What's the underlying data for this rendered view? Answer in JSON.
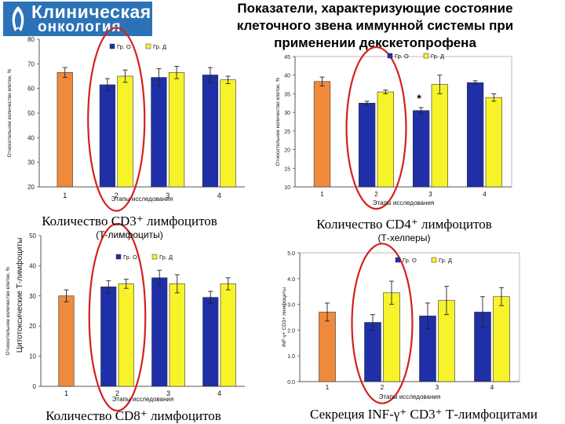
{
  "header": {
    "logo_line1": "Клиническая",
    "logo_line2": "онкология",
    "title_lines": [
      "Показатели, характеризующие состояние",
      "клеточного звена иммунной системы при",
      "применении декскетопрофена"
    ]
  },
  "colors": {
    "control": "#f08a3c",
    "gr_o": "#1f2fa8",
    "gr_d": "#f7f32a",
    "ellipse": "#d42020"
  },
  "chart_data": [
    {
      "type": "bar",
      "caption": "Количество CD3⁺ лимфоцитов",
      "subcaption": "(Т-лимфоциты)",
      "ylabel": "Относительное количество клеток, %",
      "xlabel": "Этапы исследования",
      "ylim": [
        20,
        80
      ],
      "yticks": [
        "20",
        "30",
        "40",
        "50",
        "60",
        "70",
        "80"
      ],
      "categories": [
        "1",
        "2",
        "3",
        "4"
      ],
      "legend": [
        "Гр. О",
        "Гр. Д"
      ],
      "series": [
        {
          "name": "control",
          "values": [
            66.5,
            null,
            null,
            null
          ]
        },
        {
          "name": "Гр. О",
          "values": [
            null,
            61.5,
            64.5,
            65.5
          ]
        },
        {
          "name": "Гр. Д",
          "values": [
            null,
            65,
            66.5,
            63.5
          ]
        }
      ],
      "errors": [
        [
          2,
          null,
          null,
          null
        ],
        [
          null,
          2.5,
          3.5,
          3
        ],
        [
          null,
          2.5,
          2.5,
          1.5
        ],
        [
          null,
          null,
          null,
          null
        ]
      ],
      "markers": [],
      "highlight_category": 1
    },
    {
      "type": "bar",
      "caption": "Количество CD4⁺ лимфоцитов",
      "subcaption": "(Т-хелперы)",
      "ylabel": "Относительное количество клеток, %",
      "xlabel": "Этапы исследования",
      "ylim": [
        10,
        45
      ],
      "yticks": [
        "10",
        "15",
        "20",
        "25",
        "30",
        "35",
        "40",
        "45"
      ],
      "categories": [
        "1",
        "2",
        "3",
        "4"
      ],
      "legend": [
        "Гр. О",
        "Гр. Д"
      ],
      "series": [
        {
          "name": "control",
          "values": [
            38.3,
            null,
            null,
            null
          ]
        },
        {
          "name": "Гр. О",
          "values": [
            null,
            32.5,
            30.5,
            38
          ]
        },
        {
          "name": "Гр. Д",
          "values": [
            null,
            35.5,
            37.5,
            34
          ]
        }
      ],
      "errors": [
        [
          1.2,
          null,
          null,
          null
        ],
        [
          null,
          0.5,
          0.8,
          0.5
        ],
        [
          null,
          0.5,
          2.5,
          1
        ]
      ],
      "markers": [
        {
          "text": "*",
          "category": 2,
          "value": 32.3
        }
      ],
      "highlight_category": 1
    },
    {
      "type": "bar",
      "caption": "Количество CD8⁺ лимфоцитов",
      "subcaption": "",
      "ylabel": "Относительное количество клеток, %",
      "ylabel2": "Цитотоксические Т-лимфоциты",
      "xlabel": "Этапы исследования",
      "ylim": [
        0,
        50
      ],
      "yticks": [
        "0",
        "10",
        "20",
        "30",
        "40",
        "50"
      ],
      "categories": [
        "1",
        "2",
        "3",
        "4"
      ],
      "legend": [
        "Гр. О",
        "Гр. Д"
      ],
      "series": [
        {
          "name": "control",
          "values": [
            30,
            null,
            null,
            null
          ]
        },
        {
          "name": "Гр. О",
          "values": [
            null,
            33,
            36,
            29.5
          ]
        },
        {
          "name": "Гр. Д",
          "values": [
            null,
            34,
            34,
            34
          ]
        }
      ],
      "errors": [
        [
          2,
          null,
          null,
          null
        ],
        [
          null,
          2,
          2.5,
          2
        ],
        [
          null,
          1.5,
          3,
          2
        ]
      ],
      "markers": [],
      "highlight_category": 1
    },
    {
      "type": "bar",
      "caption": "Секреция INF-γ⁺ CD3⁺ Т-лимфоцитами",
      "subcaption": "",
      "ylabel": "INF-γ+ CD3+ лимфоциты",
      "xlabel": "Этапы исследования",
      "ylim": [
        0,
        5
      ],
      "yticks": [
        "0.0",
        "1.0",
        "2.0",
        "3.0",
        "4.0",
        "5.0"
      ],
      "categories": [
        "1",
        "2",
        "3",
        "4"
      ],
      "legend": [
        "Гр. О",
        "Гр. Д"
      ],
      "series": [
        {
          "name": "control",
          "values": [
            2.7,
            null,
            null,
            null
          ]
        },
        {
          "name": "Гр. О",
          "values": [
            null,
            2.3,
            2.55,
            2.7
          ]
        },
        {
          "name": "Гр. Д",
          "values": [
            null,
            3.45,
            3.15,
            3.3
          ]
        }
      ],
      "errors": [
        [
          0.35,
          null,
          null,
          null
        ],
        [
          null,
          0.3,
          0.5,
          0.6
        ],
        [
          null,
          0.45,
          0.55,
          0.35
        ]
      ],
      "markers": [],
      "highlight_category": 1
    }
  ]
}
